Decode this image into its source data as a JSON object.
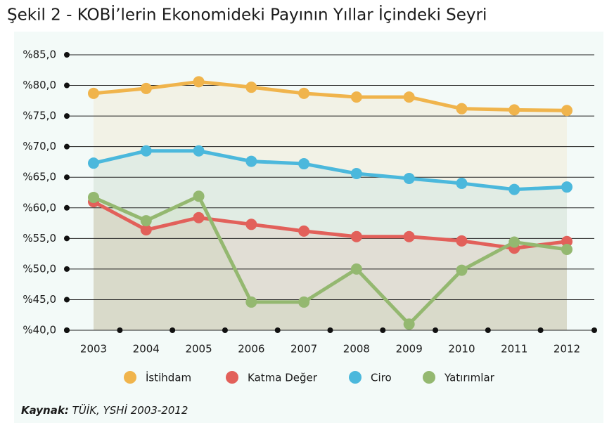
{
  "chart_data": {
    "type": "line",
    "title": "Şekil 2 - KOBİ’lerin Ekonomideki Payının Yıllar İçindeki Seyri",
    "categories": [
      "2003",
      "2004",
      "2005",
      "2006",
      "2007",
      "2008",
      "2009",
      "2010",
      "2011",
      "2012"
    ],
    "series": [
      {
        "name": "İstihdam",
        "color": "#f0b44c",
        "values": [
          78.7,
          79.5,
          80.6,
          79.7,
          78.7,
          78.1,
          78.1,
          76.2,
          76.0,
          75.9
        ]
      },
      {
        "name": "Katma Değer",
        "color": "#e2605a",
        "values": [
          61.0,
          56.4,
          58.4,
          57.3,
          56.2,
          55.3,
          55.3,
          54.6,
          53.4,
          54.5
        ]
      },
      {
        "name": "Ciro",
        "color": "#4bb8dc",
        "values": [
          67.3,
          69.3,
          69.3,
          67.6,
          67.2,
          65.6,
          64.8,
          64.0,
          63.0,
          63.4
        ]
      },
      {
        "name": "Yatırımlar",
        "color": "#94b870",
        "values": [
          61.7,
          57.9,
          61.9,
          44.6,
          44.6,
          50.0,
          41.0,
          49.8,
          54.4,
          53.2
        ]
      }
    ],
    "ylim": [
      40,
      85
    ],
    "yticks": [
      {
        "value": 40,
        "label": "%40,0"
      },
      {
        "value": 45,
        "label": "%45,0"
      },
      {
        "value": 50,
        "label": "%50,0"
      },
      {
        "value": 55,
        "label": "%55,0"
      },
      {
        "value": 60,
        "label": "%60,0"
      },
      {
        "value": 65,
        "label": "%65,0"
      },
      {
        "value": 70,
        "label": "%70,0"
      },
      {
        "value": 75,
        "label": "%75,0"
      },
      {
        "value": 80,
        "label": "%80,0"
      },
      {
        "value": 85,
        "label": "%85,0"
      }
    ],
    "grid": true,
    "source": {
      "label": "Kaynak:",
      "text": "TÜİK, YSHİ 2003-2012"
    }
  }
}
